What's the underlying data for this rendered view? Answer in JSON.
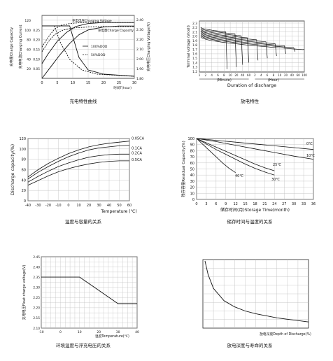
{
  "panels": {
    "p1": {
      "caption": "充电特性曲线"
    },
    "p2": {
      "caption": "放电特性"
    },
    "p3": {
      "caption": "温度与容量的关系"
    },
    "p4": {
      "caption": "储存时间与温度的关系"
    },
    "p5": {
      "caption": "环境温度与浮充电压的关系"
    },
    "p6": {
      "caption": "放电深度与寿命的关系"
    }
  },
  "chart_data": [
    {
      "id": "p1",
      "type": "line",
      "xlabel": "时间T(hour)",
      "xlim": [
        0,
        30
      ],
      "xticks": [
        0,
        5,
        10,
        15,
        20,
        25,
        30
      ],
      "ylabel_left": "充电量Charge Capacity",
      "ylabel_left2": "充电电流Charging Current",
      "ylabel_right": "充电电压Charging Voltage(V)",
      "left_ticks": [
        20,
        40,
        60,
        80,
        100,
        120
      ],
      "left_ticks2": [
        "0.05",
        "0.10",
        "0.15",
        "0.20",
        "0.25"
      ],
      "right_ticks": [
        "1.80",
        "1.90",
        "2.00",
        "2.10",
        "2.20",
        "2.30",
        "2.40"
      ],
      "annotations": [
        "充电电压Charging Voltage",
        "充电量Charge Capacity",
        "100%DOD",
        "50%DOD"
      ],
      "series": [
        {
          "name": "充电电压Charging Voltage",
          "x": [
            0,
            2,
            5,
            8,
            11,
            15,
            20,
            25,
            30
          ],
          "y": [
            1.95,
            2.05,
            2.18,
            2.27,
            2.33,
            2.36,
            2.37,
            2.37,
            2.37
          ]
        },
        {
          "x": [
            0,
            2,
            4,
            6,
            9,
            13,
            18,
            24,
            30
          ],
          "y": [
            2.12,
            2.22,
            2.3,
            2.34,
            2.36,
            2.37,
            2.37,
            2.37,
            2.37
          ]
        },
        {
          "name": "充电量Charge Capacity",
          "x": [
            0,
            3,
            6,
            9,
            12,
            15,
            20,
            25,
            30
          ],
          "y": [
            0,
            25,
            50,
            72,
            90,
            100,
            106,
            108,
            108
          ]
        },
        {
          "x": [
            0,
            2,
            4,
            7,
            10,
            15,
            20,
            30
          ],
          "y": [
            55,
            75,
            90,
            100,
            104,
            106,
            107,
            107
          ]
        },
        {
          "name": "100%DOD",
          "x": [
            0,
            9,
            10,
            12,
            15,
            20,
            25,
            30
          ],
          "y": [
            0.25,
            0.25,
            0.2,
            0.1,
            0.04,
            0.02,
            0.015,
            0.01
          ]
        },
        {
          "name": "50%DOD",
          "x": [
            0,
            4,
            6,
            9,
            13,
            18,
            24,
            30
          ],
          "y": [
            0.25,
            0.25,
            0.17,
            0.09,
            0.04,
            0.02,
            0.015,
            0.01
          ]
        }
      ]
    },
    {
      "id": "p2",
      "type": "line",
      "ylabel": "Terminal voltage (V/cell)",
      "yticks": [
        "2.3",
        "2.2",
        "2.1",
        "2.0",
        "1.9",
        "1.8",
        "1.7",
        "1.6",
        "1.5",
        "1.4",
        "1.3",
        "1.2"
      ],
      "xticks": [
        "1",
        "2",
        "4",
        "6",
        "8",
        "10",
        "20",
        "40",
        "60",
        "2",
        "4",
        "6",
        "8",
        "10",
        "20",
        "40",
        "60",
        "100"
      ],
      "xunits": [
        "(Minute)",
        "(Hour)"
      ],
      "xlabel": "Duration of discharge",
      "series_note": "discharge curves from high to low rate"
    },
    {
      "id": "p3",
      "type": "line",
      "xlabel": "Temperature (℃)",
      "ylabel": "Discharge capacity(%)",
      "xlim": [
        -40,
        60
      ],
      "ylim": [
        0,
        120
      ],
      "xticks": [
        -40,
        -30,
        -20,
        -10,
        0,
        10,
        20,
        30,
        40,
        50,
        60
      ],
      "yticks": [
        0,
        20,
        40,
        60,
        80,
        100,
        120
      ],
      "series": [
        {
          "name": "0.05CA",
          "x": [
            -40,
            -30,
            -20,
            -10,
            0,
            10,
            20,
            30,
            40,
            50,
            60
          ],
          "y": [
            46,
            60,
            72,
            82,
            91,
            98,
            104,
            108,
            111,
            113,
            115
          ]
        },
        {
          "name": "0.1CA",
          "x": [
            -40,
            -30,
            -20,
            -10,
            0,
            10,
            20,
            30,
            40,
            50,
            60
          ],
          "y": [
            42,
            55,
            66,
            76,
            85,
            92,
            98,
            102,
            104,
            106,
            107
          ]
        },
        {
          "name": "0.2CA",
          "x": [
            -40,
            -30,
            -20,
            -10,
            0,
            10,
            20,
            30,
            40,
            50,
            60
          ],
          "y": [
            36,
            47,
            57,
            66,
            73,
            79,
            84,
            87,
            89,
            90,
            90
          ]
        },
        {
          "name": "0.5CA",
          "x": [
            -40,
            -30,
            -20,
            -10,
            0,
            10,
            20,
            30,
            40,
            50,
            60
          ],
          "y": [
            30,
            39,
            48,
            56,
            62,
            67,
            71,
            74,
            76,
            77,
            77
          ]
        }
      ]
    },
    {
      "id": "p4",
      "type": "line",
      "xlabel": "储存时间(月)Storage Time(month)",
      "ylabel": "残存容量Residual Capacity(%)",
      "xlim": [
        0,
        36
      ],
      "ylim": [
        0,
        100
      ],
      "xticks": [
        0,
        3,
        6,
        9,
        12,
        15,
        18,
        21,
        24,
        27,
        30,
        33,
        36
      ],
      "yticks": [
        0,
        10,
        20,
        30,
        40,
        50,
        60,
        70,
        80,
        90,
        100
      ],
      "series": [
        {
          "name": "0℃",
          "x": [
            0,
            6,
            12,
            18,
            24,
            30,
            36
          ],
          "y": [
            100,
            97,
            94,
            91,
            88,
            85,
            82
          ]
        },
        {
          "name": "10℃",
          "x": [
            0,
            6,
            12,
            18,
            24,
            30,
            36
          ],
          "y": [
            100,
            95,
            89,
            83,
            77,
            71,
            66
          ]
        },
        {
          "name": "25℃",
          "x": [
            0,
            3,
            6,
            9,
            12,
            15,
            18,
            21,
            24
          ],
          "y": [
            100,
            93,
            86,
            79,
            72,
            65,
            58,
            52,
            47
          ]
        },
        {
          "name": "30℃",
          "x": [
            0,
            3,
            6,
            9,
            12,
            15,
            18,
            21,
            24
          ],
          "y": [
            100,
            91,
            82,
            74,
            66,
            58,
            51,
            45,
            40
          ]
        },
        {
          "name": "40℃",
          "x": [
            0,
            2,
            4,
            6,
            8,
            10,
            12
          ],
          "y": [
            100,
            90,
            80,
            70,
            60,
            51,
            44
          ]
        }
      ]
    },
    {
      "id": "p5",
      "type": "line",
      "xlabel": "温度Temperature(℃)",
      "ylabel": "充电电压Float charge voltage(V)",
      "xlim": [
        -10,
        40
      ],
      "ylim": [
        2.1,
        2.45
      ],
      "xticks": [
        -10,
        0,
        10,
        20,
        30,
        40
      ],
      "yticks": [
        "2.10",
        "2.15",
        "2.20",
        "2.25",
        "2.30",
        "2.35",
        "2.40",
        "2.45"
      ],
      "series": [
        {
          "x": [
            -10,
            10,
            30,
            40
          ],
          "y": [
            2.35,
            2.35,
            2.22,
            2.22
          ]
        }
      ]
    },
    {
      "id": "p6",
      "type": "line",
      "xlabel": "放电深度Depth  of Discharge(%)",
      "series": [
        {
          "x": [
            2,
            5,
            10,
            20,
            30,
            40,
            50,
            60,
            70,
            80,
            90,
            100
          ],
          "y": [
            0.98,
            0.78,
            0.58,
            0.4,
            0.31,
            0.25,
            0.21,
            0.18,
            0.15,
            0.13,
            0.11,
            0.09
          ]
        }
      ]
    }
  ]
}
